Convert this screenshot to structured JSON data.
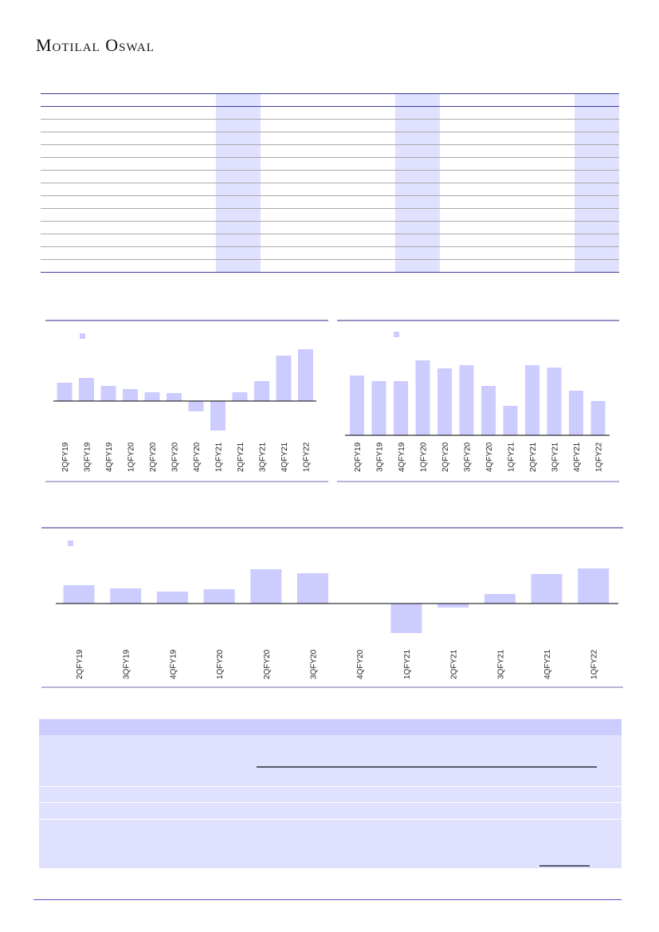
{
  "header": {
    "brand": "Motilal Oswal"
  },
  "colors": {
    "bar": "#ccccff",
    "shade": "#e0e0ff",
    "rule": "#3d3d9b",
    "header_band": "#ccccff"
  },
  "chart_data": [
    {
      "type": "bar",
      "title": "",
      "categories": [
        "2QFY19",
        "3QFY19",
        "4QFY19",
        "1QFY20",
        "2QFY20",
        "3QFY20",
        "4QFY20",
        "1QFY21",
        "2QFY21",
        "3QFY21",
        "4QFY21",
        "1QFY22"
      ],
      "values": [
        23,
        29,
        19,
        15,
        11,
        10,
        -13,
        -37,
        11,
        25,
        57,
        65
      ],
      "legend": "top-left"
    },
    {
      "type": "bar",
      "title": "",
      "categories": [
        "2QFY19",
        "3QFY19",
        "4QFY19",
        "1QFY20",
        "2QFY20",
        "3QFY20",
        "4QFY20",
        "1QFY21",
        "2QFY21",
        "3QFY21",
        "4QFY21",
        "1QFY22"
      ],
      "values": [
        75,
        68,
        68,
        94,
        84,
        88,
        62,
        37,
        88,
        85,
        56,
        43
      ],
      "legend": "top-left"
    },
    {
      "type": "bar",
      "title": "",
      "categories": [
        "2QFY19",
        "3QFY19",
        "4QFY19",
        "1QFY20",
        "2QFY20",
        "3QFY20",
        "4QFY20",
        "1QFY21",
        "2QFY21",
        "3QFY21",
        "4QFY21",
        "1QFY22"
      ],
      "values": [
        23,
        19,
        15,
        18,
        43,
        38,
        0,
        -37,
        -5,
        12,
        37,
        44
      ],
      "legend": "top-left"
    }
  ]
}
